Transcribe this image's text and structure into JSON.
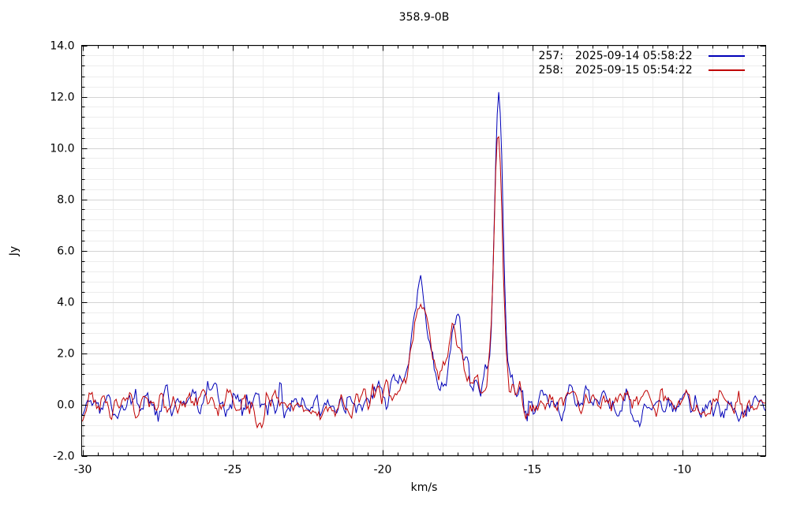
{
  "chart": {
    "title": "358.9-0B",
    "xlabel": "km/s",
    "ylabel": "Jy"
  },
  "legend": {
    "entries": [
      {
        "id": "257:",
        "datetime": "2025-09-14 05:58:22",
        "color": "#0000b8"
      },
      {
        "id": "258:",
        "datetime": "2025-09-15 05:54:22",
        "color": "#c00000"
      }
    ]
  },
  "chart_data": {
    "type": "line",
    "title": "358.9-0B",
    "xlabel": "km/s",
    "ylabel": "Jy",
    "grid": "on",
    "legend_position": "top-right-inside",
    "axes": {
      "x": {
        "min": -30.04,
        "max": -7.22,
        "major_step": 5,
        "tick_minor_step": 0.5,
        "grid_step": 1,
        "ticks": [
          {
            "v": -30,
            "label": "-30"
          },
          {
            "v": -25,
            "label": "-25"
          },
          {
            "v": -20,
            "label": "-20"
          },
          {
            "v": -15,
            "label": "-15"
          },
          {
            "v": -10,
            "label": "-10"
          }
        ]
      },
      "y": {
        "min": -2.0,
        "max": 14.0,
        "major_step": 2,
        "minor_step": 0.4,
        "ticks": [
          {
            "v": 14,
            "label": "14.0"
          },
          {
            "v": 12,
            "label": "12.0"
          },
          {
            "v": 10,
            "label": "10.0"
          },
          {
            "v": 8,
            "label": "8.0"
          },
          {
            "v": 6,
            "label": "6.0"
          },
          {
            "v": 4,
            "label": "4.0"
          },
          {
            "v": 2,
            "label": "2.0"
          },
          {
            "v": 0,
            "label": "0.0"
          },
          {
            "v": -2,
            "label": "-2.0"
          }
        ]
      }
    },
    "sampling": {
      "x_start": -30.04,
      "x_end": -7.22,
      "n_points": 457
    },
    "series": [
      {
        "name": "257: 2025-09-14 05:58:22",
        "color": "#0000b8",
        "seed": 11,
        "noise_sigma": 0.27,
        "peaks": [
          {
            "center": -16.13,
            "height": 11.3,
            "sigma": 0.13
          },
          {
            "center": -16.15,
            "height": 1.2,
            "sigma": 0.3
          },
          {
            "center": -18.74,
            "height": 3.6,
            "sigma": 0.22
          },
          {
            "center": -18.55,
            "height": 1.0,
            "sigma": 0.55
          },
          {
            "center": -17.55,
            "height": 2.5,
            "sigma": 0.16
          },
          {
            "center": -17.35,
            "height": 0.9,
            "sigma": 0.5
          },
          {
            "center": -19.6,
            "height": 0.6,
            "sigma": 0.3
          },
          {
            "center": -15.6,
            "height": 0.5,
            "sigma": 0.2
          }
        ],
        "feature_summary": {
          "main_peak": {
            "velocity_kms": -16.1,
            "flux_jy": 12.6
          },
          "secondary_peaks": [
            {
              "velocity_kms": -18.7,
              "flux_jy": 4.5
            },
            {
              "velocity_kms": -17.5,
              "flux_jy": 3.3
            }
          ],
          "baseline_noise_jy": 0.3
        }
      },
      {
        "name": "258: 2025-09-15 05:54:22",
        "color": "#c00000",
        "seed": 42,
        "noise_sigma": 0.27,
        "peaks": [
          {
            "center": -16.15,
            "height": 9.3,
            "sigma": 0.135
          },
          {
            "center": -16.17,
            "height": 1.1,
            "sigma": 0.3
          },
          {
            "center": -18.73,
            "height": 3.1,
            "sigma": 0.24
          },
          {
            "center": -18.55,
            "height": 1.0,
            "sigma": 0.55
          },
          {
            "center": -17.6,
            "height": 1.8,
            "sigma": 0.18
          },
          {
            "center": -17.78,
            "height": 0.5,
            "sigma": 0.1
          },
          {
            "center": -17.35,
            "height": 0.85,
            "sigma": 0.5
          },
          {
            "center": -19.6,
            "height": 0.55,
            "sigma": 0.3
          },
          {
            "center": -15.6,
            "height": 0.4,
            "sigma": 0.2
          }
        ],
        "feature_summary": {
          "main_peak": {
            "velocity_kms": -16.1,
            "flux_jy": 10.4
          },
          "secondary_peaks": [
            {
              "velocity_kms": -18.7,
              "flux_jy": 3.9
            },
            {
              "velocity_kms": -17.6,
              "flux_jy": 2.6
            }
          ],
          "baseline_noise_jy": 0.3
        }
      }
    ],
    "style": {
      "grid_minor_color": "#ededed",
      "grid_major_color": "#d4d4d4",
      "frame_color": "#000000",
      "background": "#ffffff"
    }
  }
}
